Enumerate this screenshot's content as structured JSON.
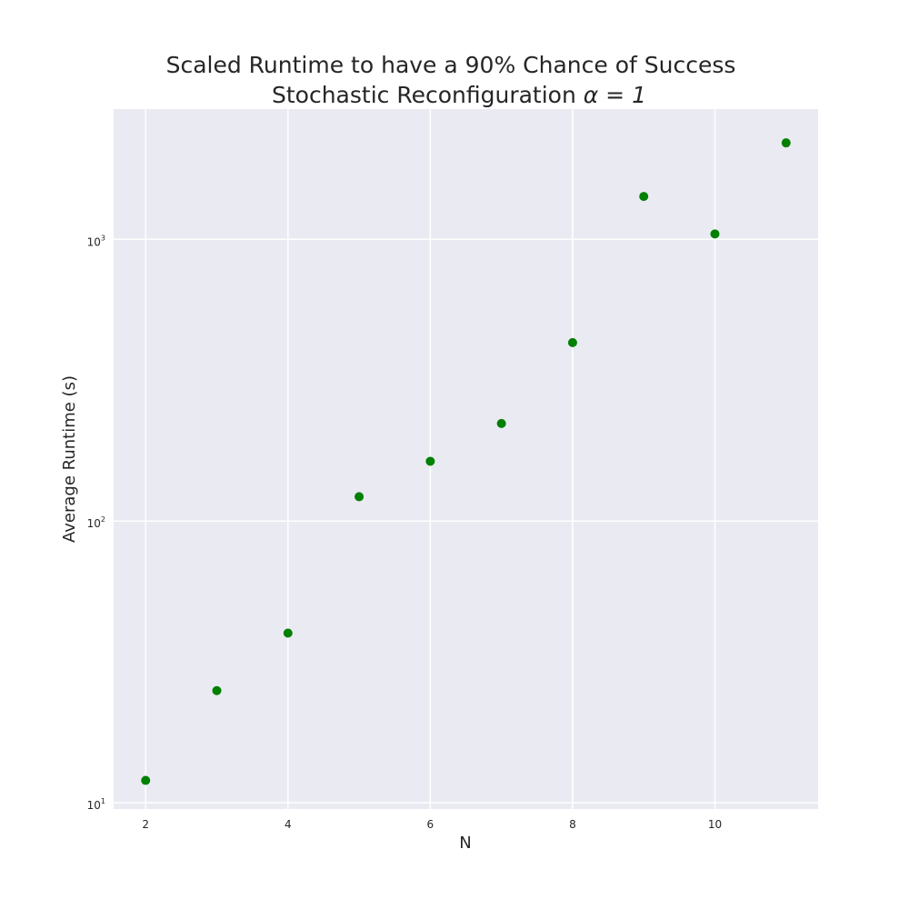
{
  "chart_data": {
    "type": "scatter",
    "title": "Scaled Runtime to have  a 90% Chance of Success",
    "subtitle_prefix": "Stochastic Reconfiguration ",
    "subtitle_math": "α = 1",
    "xlabel": "N",
    "ylabel": "Average Runtime (s)",
    "yscale": "log",
    "xlim": [
      1.55,
      11.45
    ],
    "ylim": [
      9.5,
      2900
    ],
    "x_ticks": [
      2,
      4,
      6,
      8,
      10
    ],
    "y_ticks": [
      {
        "value": 10,
        "base": "10",
        "exp": "1"
      },
      {
        "value": 100,
        "base": "10",
        "exp": "2"
      },
      {
        "value": 1000,
        "base": "10",
        "exp": "3"
      }
    ],
    "grid": true,
    "marker_color": "#008000",
    "background_color": "#eaeaf2",
    "series": [
      {
        "x": [
          2,
          3,
          4,
          5,
          6,
          7,
          8,
          9,
          10,
          11
        ],
        "y": [
          12,
          25,
          40,
          122,
          163,
          222,
          430,
          1420,
          1045,
          2200
        ]
      }
    ]
  }
}
